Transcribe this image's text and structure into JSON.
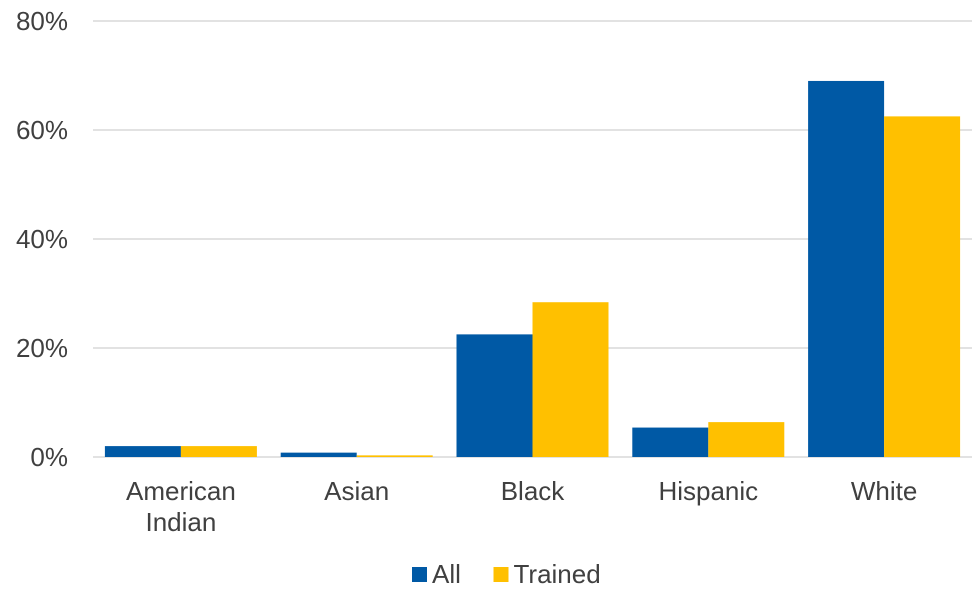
{
  "chart_data": {
    "type": "bar",
    "categories": [
      [
        "American",
        "Indian"
      ],
      [
        "Asian"
      ],
      [
        "Black"
      ],
      [
        "Hispanic"
      ],
      [
        "White"
      ]
    ],
    "series": [
      {
        "name": "All",
        "color": "#0059a5",
        "values": [
          2.0,
          0.8,
          22.5,
          5.4,
          69.0
        ]
      },
      {
        "name": "Trained",
        "color": "#ffc000",
        "values": [
          2.0,
          0.3,
          28.4,
          6.4,
          62.5
        ]
      }
    ],
    "y_tick_labels": [
      "0%",
      "20%",
      "40%",
      "60%",
      "80%"
    ],
    "y_tick_values": [
      0,
      20,
      40,
      60,
      80
    ],
    "ylim": [
      0,
      80
    ],
    "grid": true,
    "legend_position": "bottom",
    "gridline_color": "#d9d9d9"
  }
}
